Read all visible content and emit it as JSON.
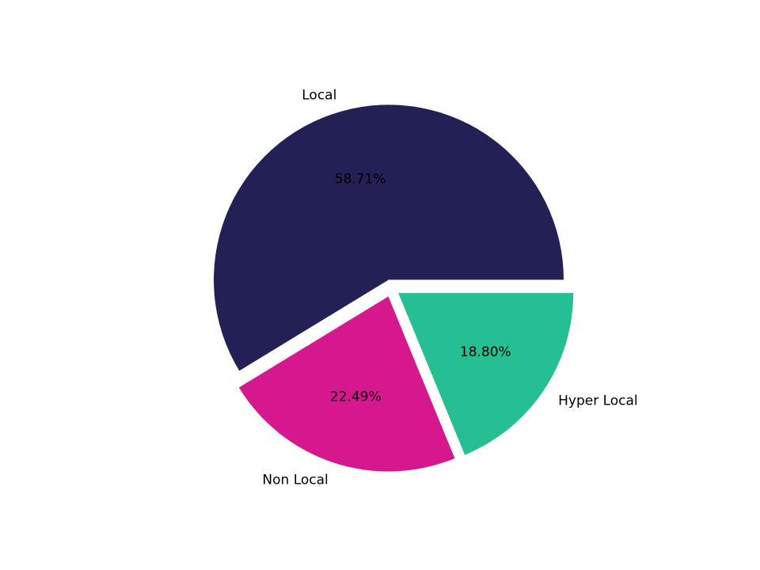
{
  "chart_data": {
    "type": "pie",
    "title": "",
    "labels": [
      "Local",
      "Non Local",
      "Hyper Local"
    ],
    "values": [
      58.71,
      22.49,
      18.8
    ],
    "pct_labels": [
      "58.71%",
      "22.49%",
      "18.80%"
    ],
    "colors": [
      "#232056",
      "#d6188f",
      "#26bf93"
    ],
    "background": "#ffffff",
    "text_color": "#000000",
    "start_angle": 0,
    "direction": "counterclockwise",
    "explode": [
      0.05,
      0.05,
      0.05
    ],
    "label_distance": 1.1,
    "pct_distance": 0.6,
    "legend_position": "none",
    "grid": false
  }
}
